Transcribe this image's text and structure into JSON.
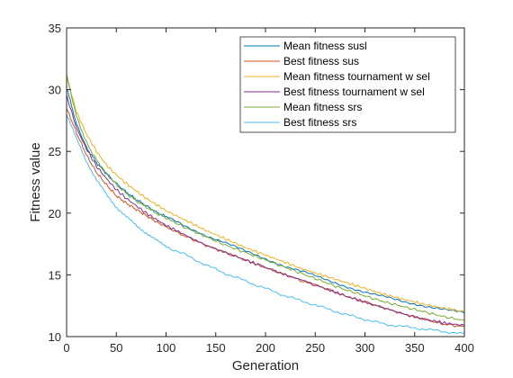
{
  "chart_data": {
    "type": "line",
    "xlabel": "Generation",
    "ylabel": "Fitness value",
    "xlim": [
      0,
      400
    ],
    "ylim": [
      10,
      35
    ],
    "xticks": [
      0,
      50,
      100,
      150,
      200,
      250,
      300,
      350,
      400
    ],
    "yticks": [
      10,
      15,
      20,
      25,
      30,
      35
    ],
    "grid": false,
    "legend_position": "top-right",
    "x": [
      0,
      10,
      20,
      30,
      40,
      50,
      60,
      70,
      80,
      90,
      100,
      120,
      140,
      160,
      180,
      200,
      220,
      240,
      260,
      280,
      300,
      320,
      340,
      360,
      380,
      400
    ],
    "series": [
      {
        "name": "Mean fitness susl",
        "color": "#0072bd",
        "values": [
          30.2,
          27.2,
          25.3,
          24.1,
          23.2,
          22.4,
          21.7,
          21.1,
          20.6,
          20.1,
          19.7,
          18.9,
          18.2,
          17.6,
          16.9,
          16.3,
          15.7,
          15.2,
          14.6,
          14.1,
          13.6,
          13.2,
          12.8,
          12.5,
          12.2,
          11.9
        ]
      },
      {
        "name": "Best fitness sus",
        "color": "#d95319",
        "values": [
          28.5,
          26.5,
          24.7,
          23.3,
          22.3,
          21.4,
          20.8,
          20.3,
          19.8,
          19.3,
          18.9,
          18.1,
          17.4,
          16.8,
          16.2,
          15.6,
          15.0,
          14.4,
          13.9,
          13.3,
          12.8,
          12.3,
          11.8,
          11.4,
          11.0,
          10.8
        ]
      },
      {
        "name": "Mean fitness tournament w sel",
        "color": "#edb120",
        "values": [
          31.0,
          28.2,
          26.4,
          25.0,
          23.9,
          23.1,
          22.4,
          21.8,
          21.2,
          20.7,
          20.2,
          19.4,
          18.6,
          17.9,
          17.2,
          16.6,
          16.0,
          15.4,
          14.9,
          14.4,
          13.9,
          13.4,
          13.0,
          12.6,
          12.3,
          12.0
        ]
      },
      {
        "name": "Best fitness tournament w sel",
        "color": "#7e2f8e",
        "values": [
          29.5,
          26.9,
          25.2,
          23.8,
          22.8,
          21.9,
          21.2,
          20.6,
          20.0,
          19.5,
          19.0,
          18.2,
          17.4,
          16.8,
          16.2,
          15.6,
          15.0,
          14.5,
          13.9,
          13.3,
          12.8,
          12.3,
          11.8,
          11.4,
          11.1,
          10.9
        ]
      },
      {
        "name": "Mean fitness srs",
        "color": "#77ac30",
        "values": [
          31.2,
          27.8,
          25.7,
          24.3,
          23.2,
          22.3,
          21.6,
          21.0,
          20.5,
          20.0,
          19.6,
          18.8,
          18.1,
          17.4,
          16.8,
          16.2,
          15.6,
          15.0,
          14.4,
          13.8,
          13.3,
          12.8,
          12.4,
          12.0,
          11.6,
          11.3
        ]
      },
      {
        "name": "Best fitness srs",
        "color": "#4dbeee",
        "values": [
          28.0,
          26.0,
          24.2,
          22.7,
          21.5,
          20.5,
          19.7,
          19.0,
          18.4,
          17.8,
          17.3,
          16.6,
          15.8,
          15.1,
          14.5,
          13.9,
          13.3,
          12.8,
          12.3,
          11.8,
          11.4,
          11.0,
          10.8,
          10.6,
          10.4,
          10.2
        ]
      }
    ]
  }
}
